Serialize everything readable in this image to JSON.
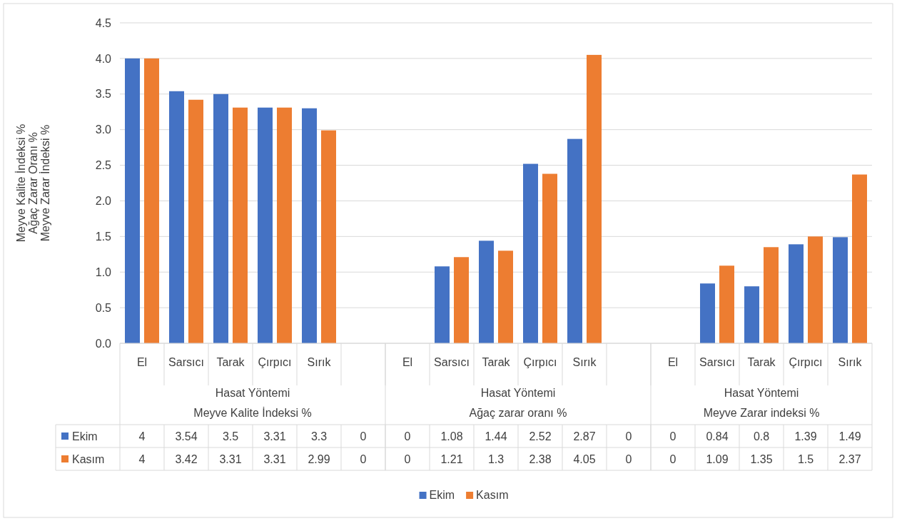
{
  "chart_data": {
    "type": "bar",
    "categories": [
      "El",
      "Sarsıcı",
      "Tarak",
      "Çırpıcı",
      "Sırık",
      null,
      "El",
      "Sarsıcı",
      "Tarak",
      "Çırpıcı",
      "Sırık",
      null,
      "El",
      "Sarsıcı",
      "Tarak",
      "Çırpıcı",
      "Sırık"
    ],
    "series": [
      {
        "name": "Ekim",
        "color": "#4472c4",
        "values": [
          4,
          3.54,
          3.5,
          3.31,
          3.3,
          0,
          0,
          1.08,
          1.44,
          2.52,
          2.87,
          0,
          0,
          0.84,
          0.8,
          1.39,
          1.49
        ]
      },
      {
        "name": "Kasım",
        "color": "#ed7d31",
        "values": [
          4,
          3.42,
          3.31,
          3.31,
          2.99,
          0,
          0,
          1.21,
          1.3,
          2.38,
          4.05,
          0,
          0,
          1.09,
          1.35,
          1.5,
          2.37
        ]
      }
    ],
    "xlabel": "Hasat Yöntemi",
    "annotations": [
      "Meyve Kalite İndeksi %",
      "Ağaç zarar oranı %",
      "Meyve Zarar indeksi %"
    ],
    "ylabel": "Meyve Kalite İndeksi %\nAğaç Zarar Oranı %\nMeyve Zarar İndeksi %",
    "ylim": [
      0,
      4.5
    ],
    "yticks": [
      {
        "value": 0,
        "label": "0.0"
      },
      {
        "value": 0.5,
        "label": "0.5"
      },
      {
        "value": 1,
        "label": "1.0"
      },
      {
        "value": 1.5,
        "label": "1.5"
      },
      {
        "value": 2,
        "label": "2.0"
      },
      {
        "value": 2.5,
        "label": "2.5"
      },
      {
        "value": 3,
        "label": "3.0"
      },
      {
        "value": 3.5,
        "label": "3.5"
      },
      {
        "value": 4,
        "label": "4.0"
      },
      {
        "value": 4.5,
        "label": "4.5"
      }
    ],
    "grid": "y",
    "legend": "bottom",
    "data_labels": true
  }
}
